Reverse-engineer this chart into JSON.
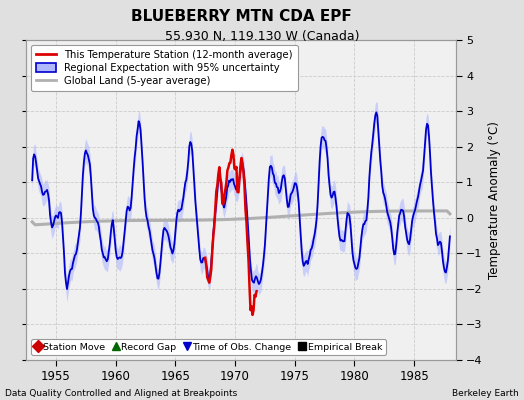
{
  "title": "BLUEBERRY MTN CDA EPF",
  "subtitle": "55.930 N, 119.130 W (Canada)",
  "ylabel": "Temperature Anomaly (°C)",
  "xlabel_bottom_left": "Data Quality Controlled and Aligned at Breakpoints",
  "xlabel_bottom_right": "Berkeley Earth",
  "xlim": [
    1952.5,
    1988.5
  ],
  "ylim": [
    -4,
    5
  ],
  "yticks": [
    -4,
    -3,
    -2,
    -1,
    0,
    1,
    2,
    3,
    4,
    5
  ],
  "xticks": [
    1955,
    1960,
    1965,
    1970,
    1975,
    1980,
    1985
  ],
  "bg_color": "#e0e0e0",
  "plot_bg_color": "#f0f0f0",
  "regional_color": "#0000cc",
  "regional_fill_color": "#b0b8ff",
  "station_color": "#dd0000",
  "global_color": "#b0b0b0",
  "legend1_items": [
    {
      "label": "This Temperature Station (12-month average)",
      "color": "#dd0000"
    },
    {
      "label": "Regional Expectation with 95% uncertainty",
      "color": "#0000cc",
      "fill": "#b0b8ff"
    },
    {
      "label": "Global Land (5-year average)",
      "color": "#b0b0b0"
    }
  ],
  "legend2_items": [
    {
      "label": "Station Move",
      "marker": "D",
      "color": "#cc0000"
    },
    {
      "label": "Record Gap",
      "marker": "^",
      "color": "#006600"
    },
    {
      "label": "Time of Obs. Change",
      "marker": "v",
      "color": "#0000cc"
    },
    {
      "label": "Empirical Break",
      "marker": "s",
      "color": "#000000"
    }
  ]
}
